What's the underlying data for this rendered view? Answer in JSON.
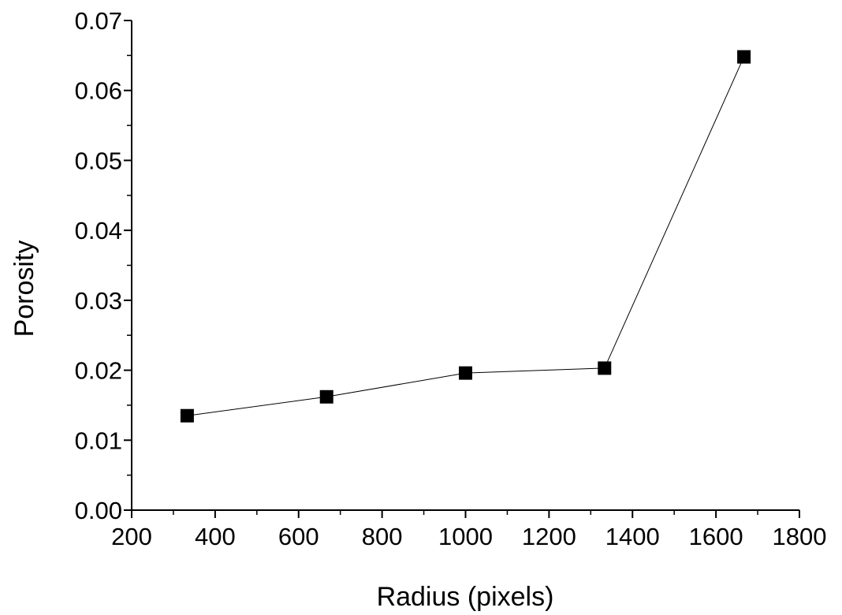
{
  "chart_data": {
    "type": "line",
    "title": "",
    "xlabel": "Radius (pixels)",
    "ylabel": "Porosity",
    "xlim": [
      200,
      1800
    ],
    "ylim": [
      0.0,
      0.07
    ],
    "x_ticks": [
      "200",
      "400",
      "600",
      "800",
      "1000",
      "1200",
      "1400",
      "1600",
      "1800"
    ],
    "y_ticks": [
      "0.00",
      "0.01",
      "0.02",
      "0.03",
      "0.04",
      "0.05",
      "0.06",
      "0.07"
    ],
    "grid": false,
    "legend": "none",
    "marker": "square",
    "color": "#000000",
    "series": [
      {
        "x": [
          333,
          667,
          1000,
          1333,
          1667
        ],
        "y": [
          0.0135,
          0.0162,
          0.0196,
          0.0203,
          0.0648
        ]
      }
    ]
  }
}
